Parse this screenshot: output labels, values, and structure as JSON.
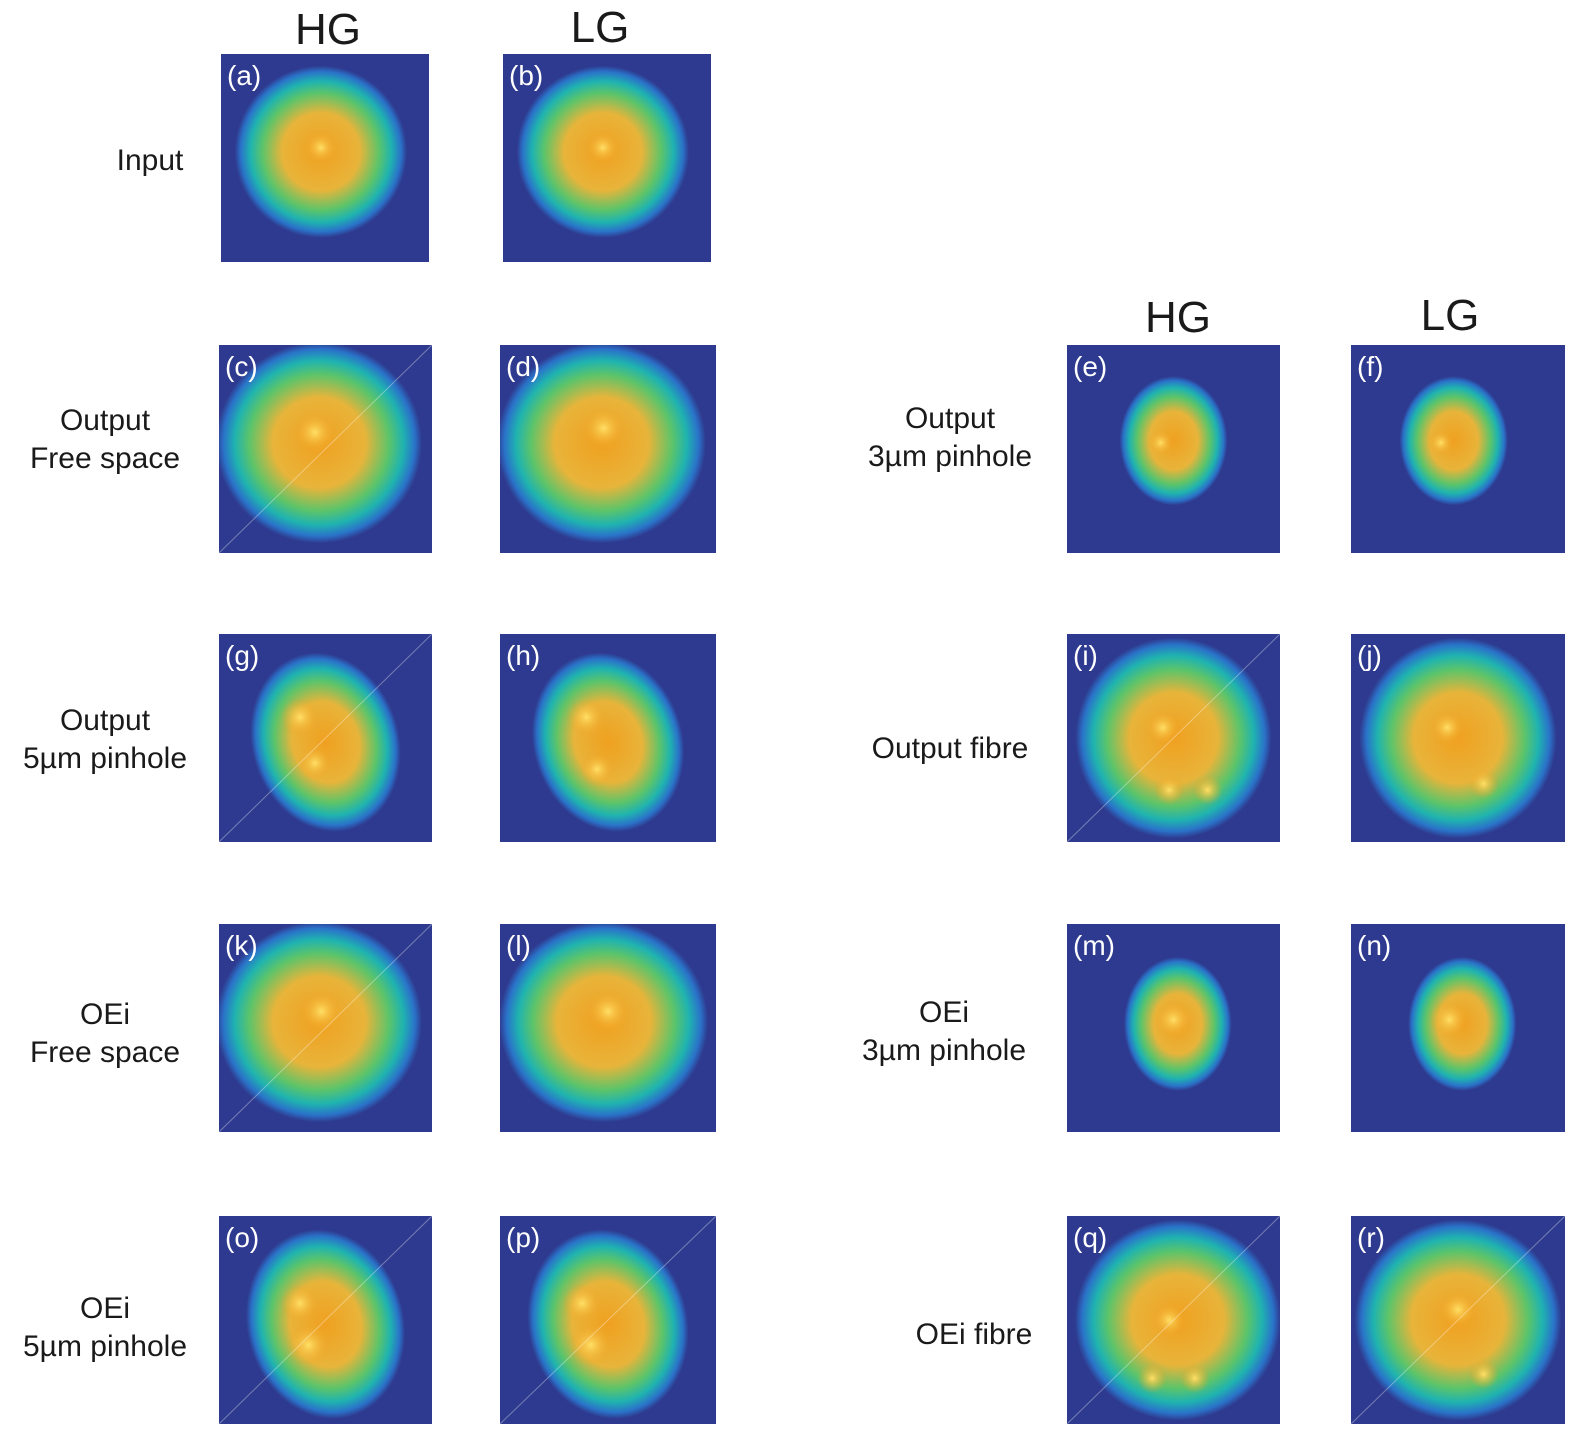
{
  "column_headers": {
    "left_hg": "HG",
    "left_lg": "LG",
    "right_hg": "HG",
    "right_lg": "LG"
  },
  "row_labels": {
    "input": "Input",
    "output_free_space": [
      "Output",
      "Free space"
    ],
    "output_5um": [
      "Output",
      "5µm pinhole"
    ],
    "oei_free_space": [
      "OEi",
      "Free space"
    ],
    "oei_5um": [
      "OEi",
      "5µm pinhole"
    ],
    "output_3um": [
      "Output",
      "3µm pinhole"
    ],
    "output_fibre": "Output fibre",
    "oei_3um": [
      "OEi",
      "3µm pinhole"
    ],
    "oei_fibre": "OEi fibre"
  },
  "panels": [
    {
      "id": "a",
      "tag": "(a)"
    },
    {
      "id": "b",
      "tag": "(b)"
    },
    {
      "id": "c",
      "tag": "(c)"
    },
    {
      "id": "d",
      "tag": "(d)"
    },
    {
      "id": "e",
      "tag": "(e)"
    },
    {
      "id": "f",
      "tag": "(f)"
    },
    {
      "id": "g",
      "tag": "(g)"
    },
    {
      "id": "h",
      "tag": "(h)"
    },
    {
      "id": "i",
      "tag": "(i)"
    },
    {
      "id": "j",
      "tag": "(j)"
    },
    {
      "id": "k",
      "tag": "(k)"
    },
    {
      "id": "l",
      "tag": "(l)"
    },
    {
      "id": "m",
      "tag": "(m)"
    },
    {
      "id": "n",
      "tag": "(n)"
    },
    {
      "id": "o",
      "tag": "(o)"
    },
    {
      "id": "p",
      "tag": "(p)"
    },
    {
      "id": "q",
      "tag": "(q)"
    },
    {
      "id": "r",
      "tag": "(r)"
    }
  ],
  "colors": {
    "background": "#2e3a8f",
    "ring_blue": "#2a73c9",
    "ring_cyan": "#1fb3b0",
    "ring_green": "#5cc46a",
    "core_yellow": "#e8b43a",
    "core_orange": "#f0a020",
    "hot": "#ffe066"
  }
}
